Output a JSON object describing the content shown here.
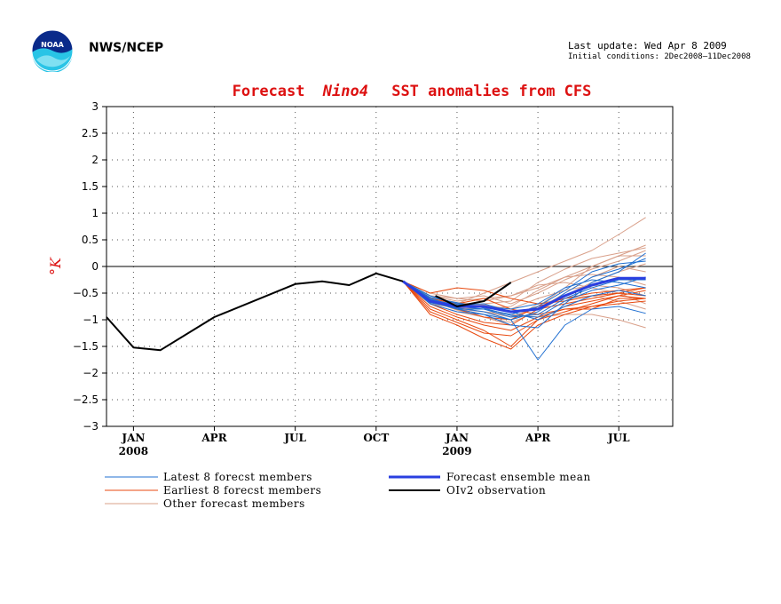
{
  "header": {
    "org": "NWS/NCEP",
    "last_update": "Last update: Wed Apr 8 2009",
    "initial_conditions": "Initial conditions: 2Dec2008–11Dec2008"
  },
  "logo": {
    "text": "NOAA"
  },
  "chart_data": {
    "type": "line",
    "title": {
      "prefix": "Forecast",
      "region": "Nino4",
      "suffix": "SST anomalies from CFS"
    },
    "ylabel": "°K",
    "ylim": [
      -3,
      3
    ],
    "y_ticks": [
      "3",
      "2.5",
      "2",
      "1.5",
      "1",
      "0.5",
      "0",
      "−0.5",
      "−1",
      "−1.5",
      "−2",
      "−2.5",
      "−3"
    ],
    "y_tick_values": [
      3,
      2.5,
      2,
      1.5,
      1,
      0.5,
      0,
      -0.5,
      -1,
      -1.5,
      -2,
      -2.5,
      -3
    ],
    "xlim": [
      0,
      21
    ],
    "x_ticks": [
      {
        "label": "JAN",
        "year": "2008",
        "x": 1
      },
      {
        "label": "APR",
        "year": "",
        "x": 4
      },
      {
        "label": "JUL",
        "year": "",
        "x": 7
      },
      {
        "label": "OCT",
        "year": "",
        "x": 10
      },
      {
        "label": "JAN",
        "year": "2009",
        "x": 13
      },
      {
        "label": "APR",
        "year": "",
        "x": 16
      },
      {
        "label": "JUL",
        "year": "",
        "x": 19
      }
    ],
    "zero_line": 0,
    "grid": true,
    "observation": {
      "name": "OIv2 observation",
      "x": [
        0,
        1,
        2,
        4,
        7,
        8,
        9,
        10,
        11
      ],
      "y": [
        -0.95,
        -1.52,
        -1.57,
        -0.95,
        -0.33,
        -0.28,
        -0.35,
        -0.13,
        -0.28
      ]
    },
    "observation_recent": {
      "x": [
        12.2,
        13,
        14,
        15
      ],
      "y": [
        -0.55,
        -0.75,
        -0.65,
        -0.3
      ]
    },
    "ensemble_mean": {
      "name": "Forecast ensemble mean",
      "x": [
        11,
        12,
        13,
        14,
        15,
        16,
        17,
        18,
        19,
        20
      ],
      "y": [
        -0.28,
        -0.65,
        -0.75,
        -0.75,
        -0.85,
        -0.8,
        -0.55,
        -0.35,
        -0.22,
        -0.22
      ]
    },
    "latest_members": {
      "name": "Latest 8 forecst members",
      "series": [
        {
          "x": [
            11,
            12,
            13,
            14,
            15,
            16,
            17,
            18,
            19,
            20
          ],
          "y": [
            -0.28,
            -0.7,
            -0.85,
            -0.9,
            -1.0,
            -1.75,
            -1.1,
            -0.8,
            -0.75,
            -0.88
          ]
        },
        {
          "x": [
            11,
            12,
            13,
            14,
            15,
            16,
            17,
            18,
            19,
            20
          ],
          "y": [
            -0.28,
            -0.65,
            -0.8,
            -0.9,
            -1.1,
            -1.15,
            -0.7,
            -0.3,
            -0.1,
            0.25
          ]
        },
        {
          "x": [
            11,
            12,
            13,
            14,
            15,
            16,
            17,
            18,
            19,
            20
          ],
          "y": [
            -0.28,
            -0.6,
            -0.75,
            -0.8,
            -0.95,
            -0.9,
            -0.6,
            -0.4,
            -0.25,
            -0.25
          ]
        },
        {
          "x": [
            11,
            12,
            13,
            14,
            15,
            16,
            17,
            18,
            19,
            20
          ],
          "y": [
            -0.28,
            -0.68,
            -0.78,
            -0.85,
            -1.0,
            -0.85,
            -0.5,
            -0.2,
            -0.05,
            0.15
          ]
        },
        {
          "x": [
            11,
            12,
            13,
            14,
            15,
            16,
            17,
            18,
            19,
            20
          ],
          "y": [
            -0.28,
            -0.55,
            -0.7,
            -0.75,
            -0.8,
            -0.7,
            -0.4,
            -0.25,
            -0.3,
            -0.4
          ]
        },
        {
          "x": [
            11,
            12,
            13,
            14,
            15,
            16,
            17,
            18,
            19,
            20
          ],
          "y": [
            -0.28,
            -0.62,
            -0.72,
            -0.7,
            -0.85,
            -1.0,
            -0.75,
            -0.55,
            -0.45,
            -0.55
          ]
        },
        {
          "x": [
            11,
            12,
            13,
            14,
            15,
            16,
            17,
            18,
            19,
            20
          ],
          "y": [
            -0.28,
            -0.66,
            -0.8,
            -0.8,
            -0.9,
            -0.75,
            -0.45,
            -0.1,
            0.05,
            0.1
          ]
        },
        {
          "x": [
            11,
            12,
            13,
            14,
            15,
            16,
            17,
            18,
            19,
            20
          ],
          "y": [
            -0.28,
            -0.58,
            -0.68,
            -0.78,
            -0.92,
            -0.95,
            -0.65,
            -0.45,
            -0.35,
            -0.2
          ]
        }
      ]
    },
    "earliest_members": {
      "name": "Earliest 8 forecst members",
      "series": [
        {
          "x": [
            11,
            12,
            13,
            14,
            15,
            16,
            17,
            18,
            19,
            20
          ],
          "y": [
            -0.28,
            -0.9,
            -1.1,
            -1.35,
            -1.55,
            -1.1,
            -0.9,
            -0.75,
            -0.65,
            -0.6
          ]
        },
        {
          "x": [
            11,
            12,
            13,
            14,
            15,
            16,
            17,
            18,
            19,
            20
          ],
          "y": [
            -0.28,
            -0.8,
            -1.0,
            -1.2,
            -1.5,
            -1.0,
            -0.85,
            -0.7,
            -0.55,
            -0.45
          ]
        },
        {
          "x": [
            11,
            12,
            13,
            14,
            15,
            16,
            17,
            18,
            19,
            20
          ],
          "y": [
            -0.28,
            -0.7,
            -0.9,
            -1.05,
            -1.1,
            -0.8,
            -0.7,
            -0.6,
            -0.5,
            -0.4
          ]
        },
        {
          "x": [
            11,
            12,
            13,
            14,
            15,
            16,
            17,
            18,
            19,
            20
          ],
          "y": [
            -0.28,
            -0.6,
            -0.7,
            -0.6,
            -0.8,
            -0.9,
            -0.8,
            -0.75,
            -0.7,
            -0.65
          ]
        },
        {
          "x": [
            11,
            12,
            13,
            14,
            15,
            16,
            17,
            18,
            19,
            20
          ],
          "y": [
            -0.28,
            -0.5,
            -0.4,
            -0.45,
            -0.6,
            -0.7,
            -0.65,
            -0.55,
            -0.5,
            -0.55
          ]
        },
        {
          "x": [
            11,
            12,
            13,
            14,
            15,
            16,
            17,
            18,
            19,
            20
          ],
          "y": [
            -0.28,
            -0.75,
            -0.95,
            -1.1,
            -1.2,
            -0.95,
            -0.8,
            -0.8,
            -0.6,
            -0.6
          ]
        },
        {
          "x": [
            11,
            12,
            13,
            14,
            15,
            16,
            17,
            18,
            19,
            20
          ],
          "y": [
            -0.28,
            -0.65,
            -0.8,
            -0.95,
            -1.0,
            -0.75,
            -0.6,
            -0.5,
            -0.45,
            -0.4
          ]
        },
        {
          "x": [
            11,
            12,
            13,
            14,
            15,
            16,
            17,
            18,
            19,
            20
          ],
          "y": [
            -0.28,
            -0.85,
            -1.05,
            -1.25,
            -1.3,
            -1.0,
            -0.75,
            -0.65,
            -0.55,
            -0.6
          ]
        }
      ]
    },
    "other_members": {
      "name": "Other forecast members",
      "series": [
        {
          "x": [
            11,
            12,
            13,
            14,
            15,
            16,
            17,
            18,
            19,
            20
          ],
          "y": [
            -0.28,
            -0.6,
            -0.7,
            -0.5,
            -0.3,
            -0.1,
            0.1,
            0.3,
            0.6,
            0.92
          ]
        },
        {
          "x": [
            11,
            12,
            13,
            14,
            15,
            16,
            17,
            18,
            19,
            20
          ],
          "y": [
            -0.28,
            -0.55,
            -0.65,
            -0.6,
            -0.55,
            -0.4,
            -0.2,
            0.0,
            0.2,
            0.4
          ]
        },
        {
          "x": [
            11,
            12,
            13,
            14,
            15,
            16,
            17,
            18,
            19,
            20
          ],
          "y": [
            -0.28,
            -0.65,
            -0.8,
            -0.85,
            -0.9,
            -0.95,
            -0.9,
            -0.9,
            -1.0,
            -1.15
          ]
        },
        {
          "x": [
            11,
            12,
            13,
            14,
            15,
            16,
            17,
            18,
            19,
            20
          ],
          "y": [
            -0.28,
            -0.7,
            -0.85,
            -0.95,
            -1.1,
            -0.8,
            -0.5,
            -0.2,
            0.0,
            -0.1
          ]
        },
        {
          "x": [
            11,
            12,
            13,
            14,
            15,
            16,
            17,
            18,
            19,
            20
          ],
          "y": [
            -0.28,
            -0.5,
            -0.6,
            -0.55,
            -0.7,
            -0.5,
            -0.25,
            -0.05,
            0.1,
            0.3
          ]
        },
        {
          "x": [
            11,
            12,
            13,
            14,
            15,
            16,
            17,
            18,
            19,
            20
          ],
          "y": [
            -0.28,
            -0.6,
            -0.75,
            -0.7,
            -0.65,
            -0.3,
            -0.05,
            0.15,
            0.25,
            0.35
          ]
        },
        {
          "x": [
            11,
            12,
            13,
            14,
            15,
            16,
            17,
            18,
            19,
            20
          ],
          "y": [
            -0.28,
            -0.62,
            -0.8,
            -0.9,
            -1.0,
            -0.7,
            -0.6,
            -0.55,
            -0.65,
            -0.8
          ]
        },
        {
          "x": [
            11,
            12,
            13,
            14,
            15,
            16,
            17,
            18,
            19,
            20
          ],
          "y": [
            -0.28,
            -0.58,
            -0.68,
            -0.72,
            -0.8,
            -0.6,
            -0.45,
            -0.35,
            -0.4,
            -0.55
          ]
        },
        {
          "x": [
            11,
            12,
            13,
            14,
            15,
            16,
            17,
            18,
            19,
            20
          ],
          "y": [
            -0.28,
            -0.66,
            -0.78,
            -0.8,
            -0.75,
            -0.45,
            -0.2,
            -0.15,
            -0.2,
            -0.35
          ]
        },
        {
          "x": [
            11,
            12,
            13,
            14,
            15,
            16,
            17,
            18,
            19,
            20
          ],
          "y": [
            -0.28,
            -0.64,
            -0.82,
            -0.95,
            -1.05,
            -0.85,
            -0.55,
            -0.3,
            -0.1,
            0.05
          ]
        },
        {
          "x": [
            11,
            12,
            13,
            14,
            15,
            16,
            17,
            18,
            19,
            20
          ],
          "y": [
            -0.28,
            -0.55,
            -0.6,
            -0.65,
            -0.55,
            -0.35,
            -0.3,
            -0.4,
            -0.5,
            -0.7
          ]
        },
        {
          "x": [
            11,
            12,
            13,
            14,
            15,
            16,
            17,
            18,
            19,
            20
          ],
          "y": [
            -0.28,
            -0.7,
            -0.78,
            -0.85,
            -0.95,
            -0.75,
            -0.4,
            0.0,
            0.2,
            0.2
          ]
        }
      ]
    },
    "legend_placement": "bottom"
  }
}
